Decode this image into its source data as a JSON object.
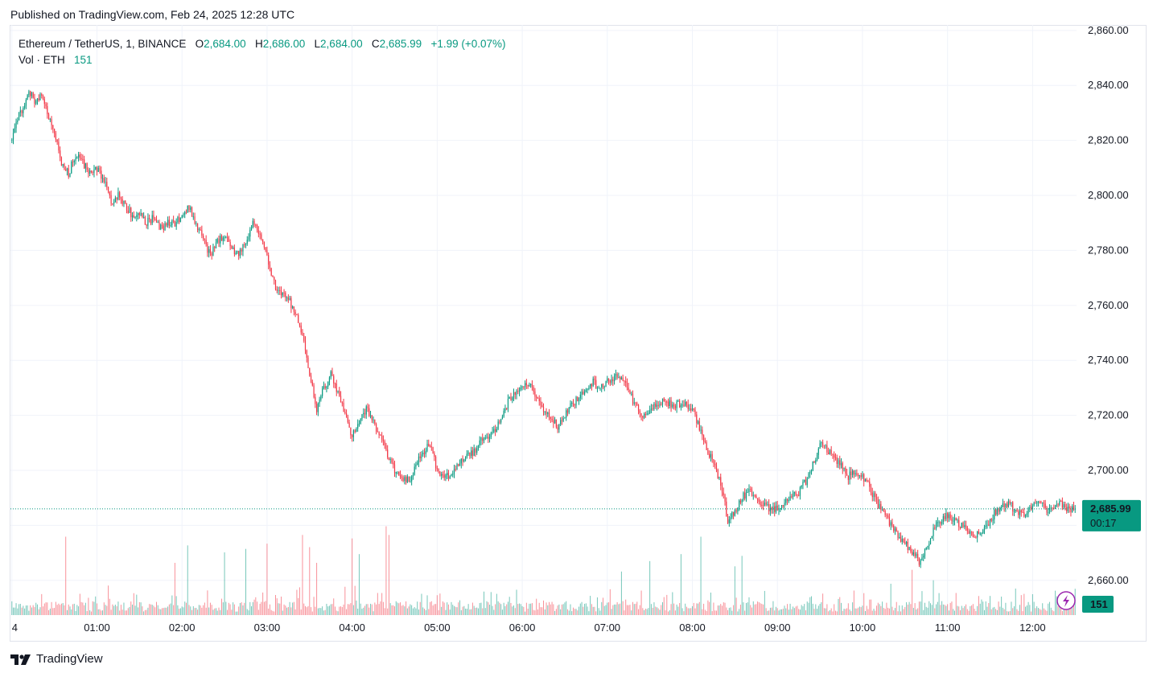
{
  "header": {
    "published": "Published on TradingView.com, Feb 24, 2025 12:28 UTC"
  },
  "legend": {
    "symbol": "Ethereum / TetherUS, 1, BINANCE",
    "o_label": "O",
    "o": "2,684.00",
    "h_label": "H",
    "h": "2,686.00",
    "l_label": "L",
    "l": "2,684.00",
    "c_label": "C",
    "c": "2,685.99",
    "change": "+1.99 (+0.07%)",
    "vol_label": "Vol · ETH",
    "vol": "151"
  },
  "footer": {
    "brand": "TradingView"
  },
  "colors": {
    "up": "#089981",
    "down": "#f23645",
    "grid": "#f0f3fa",
    "axis_text": "#131722"
  },
  "chart_data": {
    "type": "candlestick",
    "symbol": "Ethereum / TetherUS",
    "interval": "1",
    "exchange": "BINANCE",
    "ylim": [
      2650,
      2862
    ],
    "y_ticks": [
      "2,860.00",
      "2,840.00",
      "2,820.00",
      "2,800.00",
      "2,780.00",
      "2,760.00",
      "2,740.00",
      "2,720.00",
      "2,700.00",
      "2,680.00",
      "2,660.00"
    ],
    "y_tick_values": [
      2860,
      2840,
      2820,
      2800,
      2780,
      2760,
      2740,
      2720,
      2700,
      2680,
      2660
    ],
    "x_ticks": [
      "4",
      "01:00",
      "02:00",
      "03:00",
      "04:00",
      "05:00",
      "06:00",
      "07:00",
      "08:00",
      "09:00",
      "10:00",
      "11:00",
      "12:00"
    ],
    "x_tick_minutes": [
      0,
      60,
      120,
      180,
      240,
      300,
      360,
      420,
      480,
      540,
      600,
      660,
      720
    ],
    "minutes_visible": [
      -1,
      751
    ],
    "last_price": {
      "value": 2685.99,
      "label": "2,685.99",
      "countdown": "00:17"
    },
    "last_volume": {
      "value": 151,
      "label": "151"
    },
    "grid": true,
    "price_path": [
      [
        0,
        2820
      ],
      [
        3,
        2828
      ],
      [
        8,
        2831
      ],
      [
        12,
        2838
      ],
      [
        16,
        2834
      ],
      [
        20,
        2836
      ],
      [
        25,
        2830
      ],
      [
        30,
        2822
      ],
      [
        35,
        2812
      ],
      [
        40,
        2808
      ],
      [
        45,
        2815
      ],
      [
        50,
        2812
      ],
      [
        55,
        2808
      ],
      [
        60,
        2810
      ],
      [
        65,
        2806
      ],
      [
        70,
        2798
      ],
      [
        75,
        2800
      ],
      [
        80,
        2797
      ],
      [
        85,
        2792
      ],
      [
        90,
        2794
      ],
      [
        95,
        2790
      ],
      [
        100,
        2792
      ],
      [
        105,
        2788
      ],
      [
        110,
        2790
      ],
      [
        115,
        2790
      ],
      [
        120,
        2793
      ],
      [
        125,
        2796
      ],
      [
        130,
        2790
      ],
      [
        135,
        2784
      ],
      [
        140,
        2778
      ],
      [
        145,
        2783
      ],
      [
        150,
        2786
      ],
      [
        155,
        2780
      ],
      [
        160,
        2779
      ],
      [
        165,
        2782
      ],
      [
        170,
        2790
      ],
      [
        175,
        2786
      ],
      [
        180,
        2778
      ],
      [
        185,
        2768
      ],
      [
        190,
        2764
      ],
      [
        195,
        2762
      ],
      [
        200,
        2758
      ],
      [
        205,
        2750
      ],
      [
        210,
        2735
      ],
      [
        215,
        2722
      ],
      [
        220,
        2730
      ],
      [
        225,
        2735
      ],
      [
        230,
        2728
      ],
      [
        235,
        2720
      ],
      [
        240,
        2712
      ],
      [
        245,
        2718
      ],
      [
        250,
        2722
      ],
      [
        255,
        2718
      ],
      [
        260,
        2712
      ],
      [
        265,
        2706
      ],
      [
        270,
        2700
      ],
      [
        275,
        2698
      ],
      [
        280,
        2696
      ],
      [
        285,
        2702
      ],
      [
        290,
        2706
      ],
      [
        295,
        2710
      ],
      [
        300,
        2700
      ],
      [
        305,
        2698
      ],
      [
        310,
        2698
      ],
      [
        315,
        2702
      ],
      [
        320,
        2706
      ],
      [
        325,
        2706
      ],
      [
        330,
        2710
      ],
      [
        335,
        2712
      ],
      [
        340,
        2714
      ],
      [
        345,
        2720
      ],
      [
        350,
        2725
      ],
      [
        355,
        2728
      ],
      [
        360,
        2730
      ],
      [
        365,
        2732
      ],
      [
        370,
        2726
      ],
      [
        375,
        2722
      ],
      [
        380,
        2720
      ],
      [
        385,
        2716
      ],
      [
        390,
        2720
      ],
      [
        395,
        2724
      ],
      [
        400,
        2726
      ],
      [
        405,
        2730
      ],
      [
        410,
        2732
      ],
      [
        415,
        2730
      ],
      [
        420,
        2732
      ],
      [
        425,
        2734
      ],
      [
        430,
        2734
      ],
      [
        435,
        2728
      ],
      [
        440,
        2724
      ],
      [
        445,
        2720
      ],
      [
        450,
        2722
      ],
      [
        455,
        2724
      ],
      [
        460,
        2726
      ],
      [
        465,
        2724
      ],
      [
        470,
        2724
      ],
      [
        475,
        2724
      ],
      [
        480,
        2722
      ],
      [
        485,
        2716
      ],
      [
        490,
        2708
      ],
      [
        495,
        2702
      ],
      [
        500,
        2695
      ],
      [
        505,
        2682
      ],
      [
        510,
        2685
      ],
      [
        515,
        2690
      ],
      [
        520,
        2693
      ],
      [
        525,
        2690
      ],
      [
        530,
        2688
      ],
      [
        535,
        2686
      ],
      [
        540,
        2686
      ],
      [
        545,
        2688
      ],
      [
        550,
        2690
      ],
      [
        555,
        2692
      ],
      [
        560,
        2696
      ],
      [
        565,
        2702
      ],
      [
        570,
        2710
      ],
      [
        575,
        2708
      ],
      [
        580,
        2704
      ],
      [
        585,
        2702
      ],
      [
        590,
        2698
      ],
      [
        595,
        2700
      ],
      [
        600,
        2698
      ],
      [
        605,
        2694
      ],
      [
        610,
        2688
      ],
      [
        615,
        2684
      ],
      [
        620,
        2680
      ],
      [
        625,
        2676
      ],
      [
        630,
        2674
      ],
      [
        635,
        2670
      ],
      [
        640,
        2667
      ],
      [
        645,
        2672
      ],
      [
        650,
        2678
      ],
      [
        655,
        2682
      ],
      [
        660,
        2684
      ],
      [
        665,
        2682
      ],
      [
        670,
        2680
      ],
      [
        675,
        2678
      ],
      [
        680,
        2676
      ],
      [
        685,
        2678
      ],
      [
        690,
        2682
      ],
      [
        695,
        2686
      ],
      [
        700,
        2688
      ],
      [
        705,
        2687
      ],
      [
        710,
        2684
      ],
      [
        715,
        2684
      ],
      [
        720,
        2688
      ],
      [
        725,
        2688
      ],
      [
        730,
        2686
      ],
      [
        735,
        2686
      ],
      [
        740,
        2688
      ],
      [
        745,
        2686
      ],
      [
        750,
        2686
      ]
    ],
    "volume_ylim": [
      0,
      600
    ],
    "volume_spikes": [
      [
        38,
        450
      ],
      [
        115,
        300
      ],
      [
        124,
        400
      ],
      [
        150,
        360
      ],
      [
        165,
        380
      ],
      [
        180,
        410
      ],
      [
        205,
        460
      ],
      [
        210,
        390
      ],
      [
        215,
        300
      ],
      [
        240,
        440
      ],
      [
        245,
        350
      ],
      [
        264,
        510
      ],
      [
        266,
        460
      ],
      [
        430,
        250
      ],
      [
        450,
        310
      ],
      [
        472,
        350
      ],
      [
        486,
        450
      ],
      [
        510,
        280
      ],
      [
        515,
        340
      ],
      [
        620,
        180
      ],
      [
        635,
        260
      ],
      [
        650,
        200
      ],
      [
        690,
        110
      ],
      [
        720,
        120
      ],
      [
        736,
        140
      ]
    ]
  }
}
